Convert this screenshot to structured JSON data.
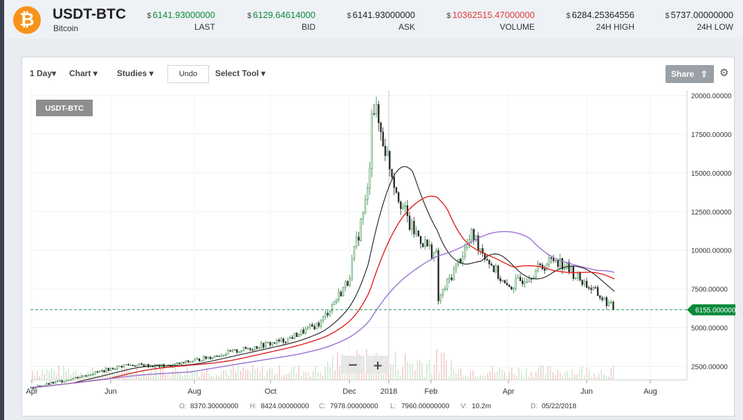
{
  "header": {
    "pair": "USDT-BTC",
    "sub": "Bitcoin",
    "coin_glyph": "₿",
    "stats": [
      {
        "value": "6141.93000000",
        "label": "LAST",
        "color": "green"
      },
      {
        "value": "6129.64614000",
        "label": "BID",
        "color": "green"
      },
      {
        "value": "6141.93000000",
        "label": "ASK",
        "color": "plain"
      },
      {
        "value": "10362515.47000000",
        "label": "VOLUME",
        "color": "red"
      },
      {
        "value": "6284.25364556",
        "label": "24H HIGH",
        "color": "plain"
      },
      {
        "value": "5737.00000000",
        "label": "24H LOW",
        "color": "plain"
      }
    ],
    "currency_symbol": "$"
  },
  "toolbar": {
    "period": "1 Day",
    "chart": "Chart",
    "studies": "Studies",
    "undo": "Undo",
    "select_tool": "Select Tool",
    "share": "Share"
  },
  "chart": {
    "symbol_label": "USDT-BTC",
    "last_price_label": "6155.000000",
    "zoom_out": "−",
    "zoom_in": "+",
    "y_ticks": [
      "20000.00000",
      "17500.00000",
      "15000.00000",
      "12500.00000",
      "10000.00000",
      "7500.00000",
      "5000.00000",
      "2500.00000"
    ],
    "x_ticks": [
      "Apr",
      "Jun",
      "Aug",
      "Oct",
      "Dec",
      "2018",
      "Feb",
      "Apr",
      "Jun",
      "Aug"
    ],
    "ohlc": {
      "o_label": "O:",
      "o": "8370.30000000",
      "h_label": "H:",
      "h": "8424.00000000",
      "c_label": "C:",
      "c": "7978.00000000",
      "l_label": "L:",
      "l": "7960.00000000",
      "v_label": "V:",
      "v": "10.2m",
      "d_label": "D:",
      "d": "05/22/2018"
    }
  },
  "chart_data": {
    "type": "line",
    "title": "USDT-BTC",
    "xlabel": "",
    "ylabel": "",
    "ylim": [
      0,
      20000
    ],
    "x": [
      "2017-04",
      "2017-05",
      "2017-06",
      "2017-07",
      "2017-08",
      "2017-09",
      "2017-10",
      "2017-11",
      "2017-12",
      "2017-12-17",
      "2018-01",
      "2018-01-15",
      "2018-02",
      "2018-02-06",
      "2018-03",
      "2018-04",
      "2018-05",
      "2018-06",
      "2018-06-26"
    ],
    "series": [
      {
        "values": [
          1100,
          1700,
          2600,
          2500,
          3300,
          4200,
          5300,
          8000,
          14000,
          19700,
          14000,
          11500,
          9500,
          6500,
          11000,
          7500,
          9500,
          7200,
          6155
        ]
      }
    ],
    "colors": {
      "up": "#2a8a3e",
      "down": "#2a2a2a",
      "ma_black": "#2a2a2a",
      "ma_red": "#e02020",
      "ma_purple": "#9a70d0",
      "last": "#0a8a3a"
    }
  }
}
